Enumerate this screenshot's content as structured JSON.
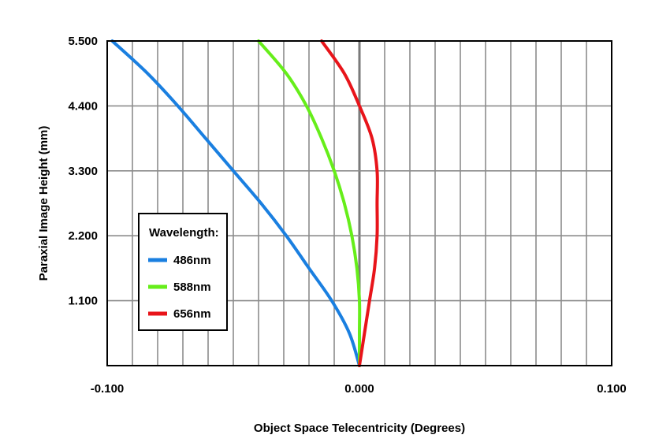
{
  "chart_data": {
    "type": "line",
    "title": "",
    "xlabel": "Object Space Telecentricity (Degrees)",
    "ylabel": "Paraxial Image Height (mm)",
    "xlim": [
      -0.1,
      0.1
    ],
    "ylim": [
      0,
      5.5
    ],
    "x_tick_labels": [
      "-0.100",
      "0.000",
      "0.100"
    ],
    "x_tick_values": [
      -0.1,
      0.0,
      0.1
    ],
    "y_tick_labels": [
      "1.100",
      "2.200",
      "3.300",
      "4.400",
      "5.500"
    ],
    "y_tick_values": [
      1.1,
      2.2,
      3.3,
      4.4,
      5.5
    ],
    "grid": true,
    "vertical_grid_step": 0.01,
    "legend": {
      "title": "Wavelength:",
      "position": "bottom-left"
    },
    "series": [
      {
        "name": "486nm",
        "color": "#1a7fe0",
        "points": [
          [
            0.0,
            0.0
          ],
          [
            -0.004,
            0.55
          ],
          [
            -0.011,
            1.1
          ],
          [
            -0.02,
            1.65
          ],
          [
            -0.029,
            2.2
          ],
          [
            -0.039,
            2.75
          ],
          [
            -0.05,
            3.3
          ],
          [
            -0.061,
            3.85
          ],
          [
            -0.072,
            4.4
          ],
          [
            -0.084,
            4.95
          ],
          [
            -0.098,
            5.5
          ]
        ]
      },
      {
        "name": "588nm",
        "color": "#66ee1a",
        "points": [
          [
            0.0,
            0.0
          ],
          [
            0.0,
            0.55
          ],
          [
            0.0,
            1.1
          ],
          [
            -0.001,
            1.65
          ],
          [
            -0.003,
            2.2
          ],
          [
            -0.006,
            2.75
          ],
          [
            -0.01,
            3.3
          ],
          [
            -0.015,
            3.85
          ],
          [
            -0.021,
            4.4
          ],
          [
            -0.029,
            4.95
          ],
          [
            -0.04,
            5.5
          ]
        ]
      },
      {
        "name": "656nm",
        "color": "#e8141a",
        "points": [
          [
            0.0,
            0.0
          ],
          [
            0.002,
            0.55
          ],
          [
            0.004,
            1.1
          ],
          [
            0.006,
            1.65
          ],
          [
            0.007,
            2.2
          ],
          [
            0.007,
            2.75
          ],
          [
            0.007,
            3.3
          ],
          [
            0.005,
            3.85
          ],
          [
            0.0,
            4.4
          ],
          [
            -0.006,
            4.95
          ],
          [
            -0.015,
            5.5
          ]
        ]
      }
    ]
  }
}
